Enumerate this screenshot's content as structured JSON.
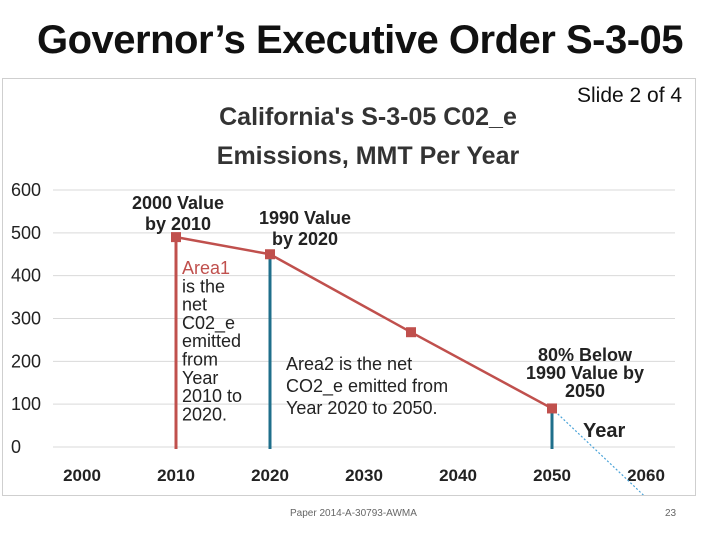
{
  "slide": {
    "title": "Governor’s Executive Order S-3-05",
    "counter": "Slide 2 of 4",
    "footer_left": "Paper 2014-A-30793-AWMA",
    "page_number": "23"
  },
  "colors": {
    "line": "#c0504d",
    "area1_divider": "#c0504d",
    "area2_divider": "#1f6f8b",
    "area2_text": "#1f6f8b",
    "grid": "#d9d9d9",
    "title": "#333333"
  },
  "chart_data": {
    "type": "line",
    "title_lines": [
      "California's S-3-05 C02_e",
      "Emissions, MMT Per Year"
    ],
    "xlabel": "Year",
    "ylabel": "",
    "xlim": [
      2000,
      2060
    ],
    "ylim": [
      0,
      600
    ],
    "x_ticks": [
      "2000",
      "2010",
      "2020",
      "2030",
      "2040",
      "2050",
      "2060"
    ],
    "y_ticks": [
      "0",
      "100",
      "200",
      "300",
      "400",
      "500",
      "600"
    ],
    "grid": true,
    "series": [
      {
        "x": [
          2010,
          2020,
          2035,
          2050
        ],
        "y": [
          490,
          450,
          268,
          90
        ]
      }
    ],
    "extrapolation": {
      "x": [
        2050,
        2060
      ],
      "y": [
        90,
        -118
      ]
    },
    "annotations": [
      {
        "id": "a-2010",
        "lines": [
          "2000 Value",
          "by 2010"
        ]
      },
      {
        "id": "a-2020",
        "lines": [
          "1990 Value",
          "by 2020"
        ]
      },
      {
        "id": "a-2050",
        "lines": [
          "80% Below",
          "1990 Value by",
          "2050"
        ]
      },
      {
        "id": "a-area1",
        "lines": [
          "Area1",
          "is the",
          "net",
          "C02_e",
          "emitted",
          "from",
          "Year",
          "2010 to",
          "2020."
        ]
      },
      {
        "id": "a-area2",
        "lines": [
          "Area2 is the net",
          "CO2_e emitted from",
          "Year 2020 to 2050."
        ]
      }
    ],
    "dividers": [
      {
        "x": 2010,
        "y_top": 490,
        "color_key": "area1_divider"
      },
      {
        "x": 2020,
        "y_top": 450,
        "color_key": "area2_divider"
      },
      {
        "x": 2050,
        "y_top": 90,
        "color_key": "area2_divider"
      }
    ]
  }
}
